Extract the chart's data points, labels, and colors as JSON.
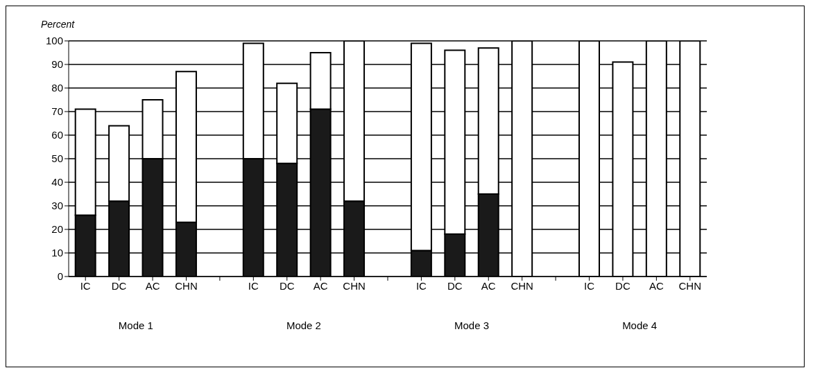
{
  "chart_data": {
    "type": "bar",
    "stacked": true,
    "ylabel": "Percent",
    "categories": [
      "IC",
      "DC",
      "AC",
      "CHN",
      null,
      "IC",
      "DC",
      "AC",
      "CHN",
      null,
      "IC",
      "DC",
      "AC",
      "CHN",
      null,
      "IC",
      "DC",
      "AC",
      "CHN"
    ],
    "series": [
      {
        "color": "#1a1a1a",
        "values": [
          26,
          32,
          50,
          23,
          null,
          50,
          48,
          71,
          32,
          null,
          11,
          18,
          35,
          0,
          null,
          0,
          0,
          0,
          0
        ]
      },
      {
        "color": "#ffffff",
        "values": [
          45,
          32,
          25,
          64,
          null,
          49,
          34,
          24,
          68,
          null,
          88,
          78,
          62,
          100,
          null,
          100,
          91,
          100,
          100
        ]
      }
    ],
    "ylim": [
      0,
      100
    ],
    "yticks": [
      0,
      10,
      20,
      30,
      40,
      50,
      60,
      70,
      80,
      90,
      100
    ],
    "grid": "y",
    "annotations": [
      "Mode 1",
      "Mode 2",
      "Mode 3",
      "Mode 4"
    ]
  }
}
